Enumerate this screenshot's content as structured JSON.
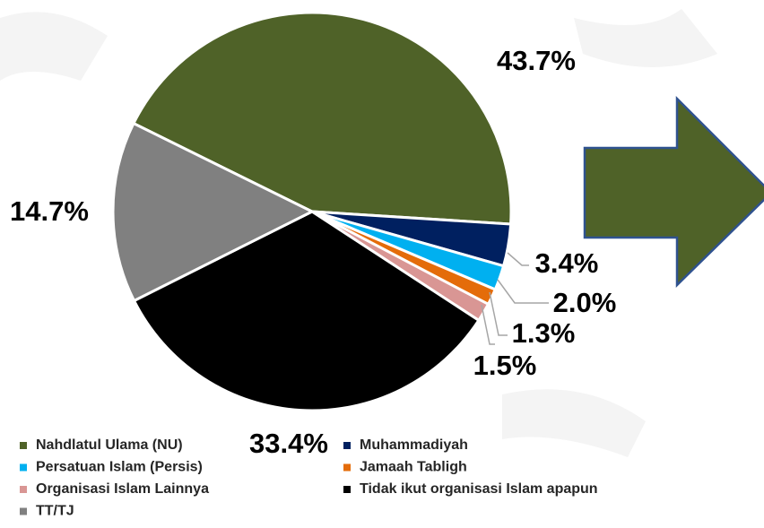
{
  "chart_data": {
    "type": "pie",
    "categories": [
      "Nahdlatul Ulama (NU)",
      "Muhammadiyah",
      "Persatuan Islam (Persis)",
      "Jamaah Tabligh",
      "Organisasi Islam Lainnya",
      "Tidak ikut organisasi Islam apapun",
      "TT/TJ"
    ],
    "values": [
      43.7,
      3.4,
      2.0,
      1.3,
      1.5,
      33.4,
      14.7
    ],
    "value_labels": [
      "43.7%",
      "3.4%",
      "2.0%",
      "1.3%",
      "1.5%",
      "33.4%",
      "14.7%"
    ],
    "colors": [
      "#4f6228",
      "#002060",
      "#00b0f0",
      "#e46c0a",
      "#d99694",
      "#000000",
      "#808080"
    ]
  }
}
